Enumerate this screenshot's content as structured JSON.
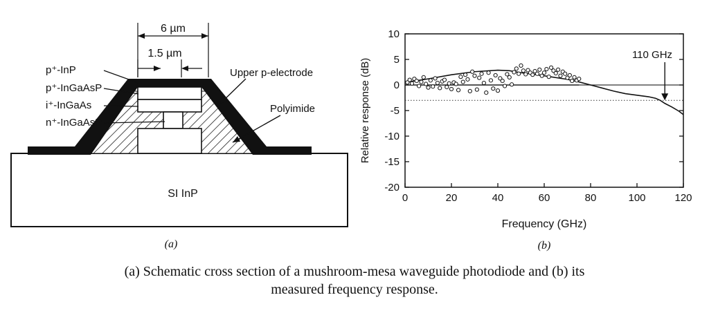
{
  "figure_a": {
    "panel_label": "(a)",
    "dimensions": {
      "outer_width": "6 µm",
      "inner_width": "1.5 µm"
    },
    "layers": {
      "p_inp": "p⁺-InP",
      "p_ingaasp": "p⁺-InGaAsP",
      "i_ingaas": "i⁺-InGaAs",
      "n_ingaasp": "n⁺-InGaAsP"
    },
    "labels": {
      "electrode": "Upper p-electrode",
      "polyimide": "Polyimide",
      "substrate": "SI InP"
    }
  },
  "figure_b": {
    "panel_label": "(b)",
    "annotation": "110 GHz"
  },
  "chart_data": {
    "type": "line",
    "xlabel": "Frequency (GHz)",
    "ylabel": "Relative response (dB)",
    "xlim": [
      0,
      120
    ],
    "ylim": [
      -20,
      10
    ],
    "x_ticks": [
      0,
      20,
      40,
      60,
      80,
      100,
      120
    ],
    "y_ticks": [
      10,
      5,
      0,
      -5,
      -10,
      -15,
      -20
    ],
    "grid": false,
    "reference_lines": [
      {
        "y": 0,
        "style": "solid"
      },
      {
        "y": -3,
        "style": "dotted"
      }
    ],
    "series": [
      {
        "kind": "line",
        "x": [
          0,
          10,
          20,
          30,
          40,
          45,
          50,
          60,
          70,
          75,
          80,
          85,
          90,
          95,
          100,
          105,
          108,
          110,
          112,
          115,
          118,
          120
        ],
        "y": [
          0.5,
          1.2,
          2.0,
          2.6,
          2.9,
          2.8,
          2.4,
          1.8,
          1.1,
          0.6,
          0.0,
          -0.6,
          -1.2,
          -1.7,
          -2.0,
          -2.3,
          -2.6,
          -3.0,
          -3.6,
          -4.3,
          -5.1,
          -5.8
        ]
      },
      {
        "kind": "line",
        "x": [
          0,
          20,
          40,
          60,
          75
        ],
        "y": [
          0,
          0,
          0,
          0,
          0
        ]
      },
      {
        "kind": "scatter",
        "x": [
          1,
          2,
          3,
          4,
          5,
          6,
          7,
          8,
          9,
          10,
          11,
          12,
          13,
          14,
          15,
          16,
          17,
          18,
          19,
          20,
          21,
          22,
          23,
          24,
          25,
          26,
          27,
          28,
          29,
          30,
          31,
          32,
          33,
          34,
          35,
          36,
          37,
          38,
          39,
          40,
          41,
          42,
          43,
          44,
          45,
          46,
          47,
          48,
          49,
          50,
          51,
          52,
          53,
          54,
          55,
          56,
          57,
          58,
          59,
          60,
          61,
          62,
          63,
          64,
          65,
          66,
          67,
          68,
          69,
          70,
          71,
          72,
          73,
          74,
          75
        ],
        "y": [
          0.5,
          1.0,
          0.3,
          1.2,
          0.8,
          -0.2,
          0.6,
          1.5,
          0.2,
          -0.5,
          0.9,
          -0.3,
          1.3,
          0.4,
          -0.6,
          0.7,
          1.0,
          -0.4,
          0.3,
          -0.8,
          0.5,
          0.2,
          -1.0,
          1.6,
          0.6,
          2.0,
          1.1,
          -1.2,
          2.6,
          1.8,
          -0.9,
          1.4,
          2.2,
          0.4,
          -1.5,
          2.4,
          0.9,
          -0.7,
          1.9,
          -1.1,
          1.3,
          0.8,
          -0.2,
          2.1,
          1.5,
          0.1,
          2.5,
          3.2,
          2.2,
          3.8,
          2.8,
          2.1,
          2.9,
          2.4,
          2.0,
          2.7,
          2.2,
          3.0,
          1.8,
          2.4,
          3.1,
          1.6,
          3.4,
          2.8,
          2.3,
          3.0,
          1.8,
          2.6,
          2.2,
          1.4,
          1.9,
          0.8,
          1.5,
          0.9,
          1.2
        ]
      }
    ],
    "annotations": [
      {
        "text": "110 GHz",
        "x": 112,
        "y": -3
      }
    ]
  },
  "caption": {
    "line1": "(a) Schematic cross section of a mushroom-mesa waveguide photodiode and (b) its",
    "line2": "measured frequency response."
  }
}
